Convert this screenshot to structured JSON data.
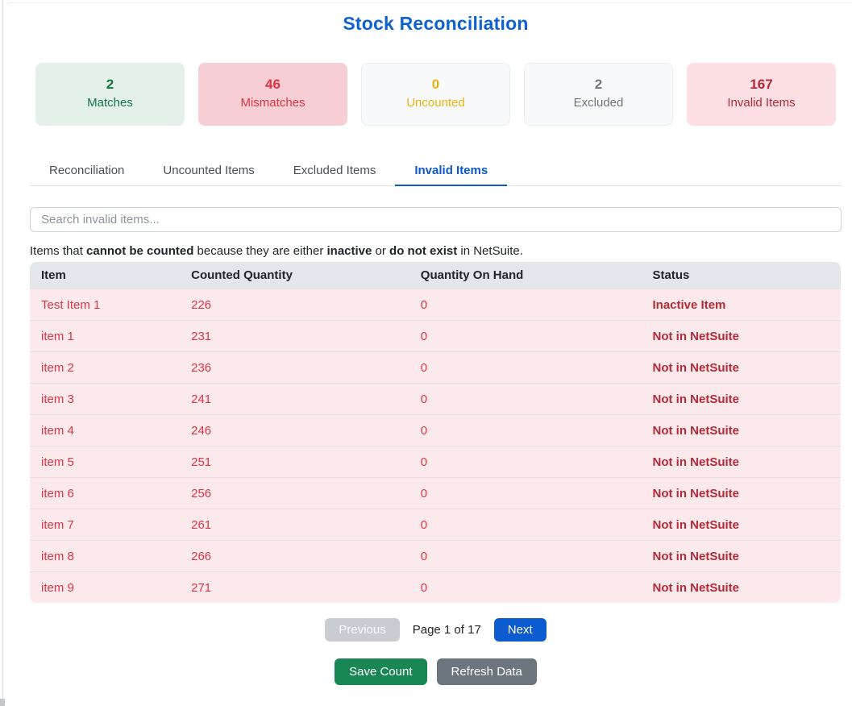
{
  "page": {
    "title": "Stock Reconciliation"
  },
  "colors": {
    "title_blue": "#0d62cf",
    "active_tab_blue": "#0a58ca",
    "success_green": "#157347",
    "danger_red": "#dc3545",
    "warning_amber": "#eab00c",
    "muted_gray": "#6c757d",
    "invalid_dark_red": "#b02a37",
    "next_button_blue": "#0d5bd0",
    "save_button_green": "#198754",
    "refresh_button_gray": "#6c757d"
  },
  "summary_cards": [
    {
      "value": "2",
      "label": "Matches",
      "variant": "success"
    },
    {
      "value": "46",
      "label": "Mismatches",
      "variant": "danger"
    },
    {
      "value": "0",
      "label": "Uncounted",
      "variant": "warning"
    },
    {
      "value": "2",
      "label": "Excluded",
      "variant": "muted"
    },
    {
      "value": "167",
      "label": "Invalid Items",
      "variant": "invalid"
    }
  ],
  "tabs": [
    {
      "label": "Reconciliation",
      "active": false
    },
    {
      "label": "Uncounted Items",
      "active": false
    },
    {
      "label": "Excluded Items",
      "active": false
    },
    {
      "label": "Invalid Items",
      "active": true
    }
  ],
  "search": {
    "placeholder": "Search invalid items..."
  },
  "description": {
    "part1": "Items that ",
    "bold1": "cannot be counted",
    "part2": " because they are either ",
    "bold2": "inactive",
    "part3": " or ",
    "bold3": "do not exist",
    "part4": " in NetSuite."
  },
  "table": {
    "headers": [
      "Item",
      "Counted Quantity",
      "Quantity On Hand",
      "Status"
    ],
    "rows": [
      {
        "item": "Test Item 1",
        "counted_quantity": "226",
        "quantity_on_hand": "0",
        "status": "Inactive Item"
      },
      {
        "item": "item 1",
        "counted_quantity": "231",
        "quantity_on_hand": "0",
        "status": "Not in NetSuite"
      },
      {
        "item": "item 2",
        "counted_quantity": "236",
        "quantity_on_hand": "0",
        "status": "Not in NetSuite"
      },
      {
        "item": "item 3",
        "counted_quantity": "241",
        "quantity_on_hand": "0",
        "status": "Not in NetSuite"
      },
      {
        "item": "item 4",
        "counted_quantity": "246",
        "quantity_on_hand": "0",
        "status": "Not in NetSuite"
      },
      {
        "item": "item 5",
        "counted_quantity": "251",
        "quantity_on_hand": "0",
        "status": "Not in NetSuite"
      },
      {
        "item": "item 6",
        "counted_quantity": "256",
        "quantity_on_hand": "0",
        "status": "Not in NetSuite"
      },
      {
        "item": "item 7",
        "counted_quantity": "261",
        "quantity_on_hand": "0",
        "status": "Not in NetSuite"
      },
      {
        "item": "item 8",
        "counted_quantity": "266",
        "quantity_on_hand": "0",
        "status": "Not in NetSuite"
      },
      {
        "item": "item 9",
        "counted_quantity": "271",
        "quantity_on_hand": "0",
        "status": "Not in NetSuite"
      }
    ]
  },
  "pagination": {
    "previous_label": "Previous",
    "page_info": "Page 1 of 17",
    "next_label": "Next"
  },
  "actions": {
    "save_label": "Save Count",
    "refresh_label": "Refresh Data"
  }
}
